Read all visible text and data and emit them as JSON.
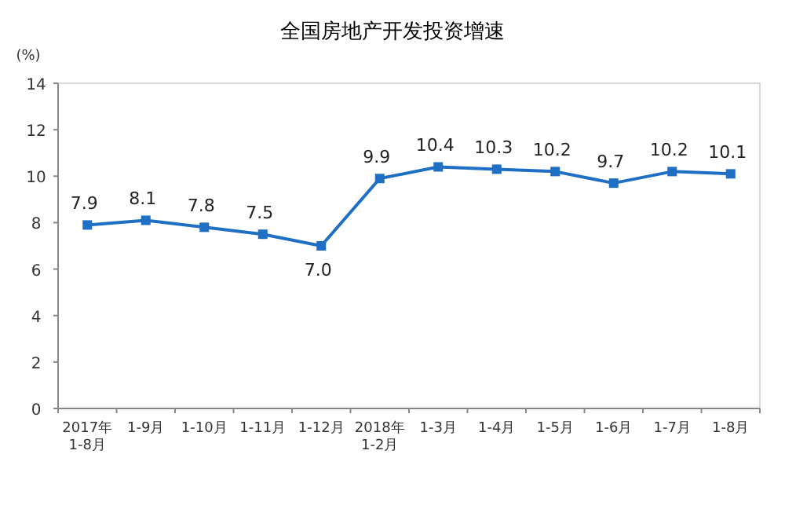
{
  "chart_data": {
    "type": "line",
    "title": "全国房地产开发投资增速",
    "ylabel": "(%)",
    "categories": [
      "2017年\n1-8月",
      "1-9月",
      "1-10月",
      "1-11月",
      "1-12月",
      "2018年\n1-2月",
      "1-3月",
      "1-4月",
      "1-5月",
      "1-6月",
      "1-7月",
      "1-8月"
    ],
    "series": [
      {
        "color": "#1f6fc5",
        "values": [
          7.9,
          8.1,
          7.8,
          7.5,
          7.0,
          9.9,
          10.4,
          10.3,
          10.2,
          9.7,
          10.2,
          10.1
        ]
      }
    ],
    "ylim": [
      0,
      14
    ],
    "yticks": [
      0,
      2,
      4,
      6,
      8,
      10,
      12,
      14
    ],
    "value_labels": [
      "7.9",
      "8.1",
      "7.8",
      "7.5",
      "7.0",
      "9.9",
      "10.4",
      "10.3",
      "10.2",
      "9.7",
      "10.2",
      "10.1"
    ],
    "marker": "square",
    "line_style": "solid"
  }
}
